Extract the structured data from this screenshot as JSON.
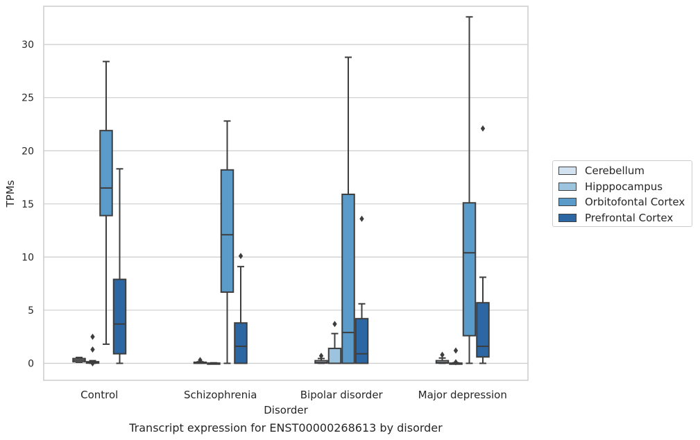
{
  "chart_data": {
    "type": "box",
    "title": "Transcript expression for ENST00000268613 by disorder",
    "xlabel": "Disorder",
    "ylabel": "TPMs",
    "ylim": [
      -1.6,
      33.6
    ],
    "yticks": [
      0,
      5,
      10,
      15,
      20,
      25,
      30
    ],
    "grid": true,
    "legend_position": "right",
    "categories": [
      "Control",
      "Schizophrenia",
      "Bipolar disorder",
      "Major depression"
    ],
    "series": [
      {
        "name": "Cerebellum",
        "color": "#d3e2f0",
        "boxes": [
          {
            "whislo": 0.1,
            "q1": 0.15,
            "med": 0.3,
            "q3": 0.45,
            "whishi": 0.55,
            "fliers": []
          },
          {
            "whislo": 0.0,
            "q1": 0.02,
            "med": 0.05,
            "q3": 0.1,
            "whishi": 0.15,
            "fliers": [
              0.3
            ]
          },
          {
            "whislo": 0.0,
            "q1": 0.02,
            "med": 0.08,
            "q3": 0.25,
            "whishi": 0.45,
            "fliers": [
              0.7
            ]
          },
          {
            "whislo": 0.0,
            "q1": 0.02,
            "med": 0.08,
            "q3": 0.25,
            "whishi": 0.5,
            "fliers": [
              0.8
            ]
          }
        ]
      },
      {
        "name": "Hipppocampus",
        "color": "#9dc4de",
        "boxes": [
          {
            "whislo": 0.0,
            "q1": 0.02,
            "med": 0.05,
            "q3": 0.15,
            "whishi": 0.25,
            "fliers": [
              2.5,
              1.3,
              0.0
            ]
          },
          {
            "whislo": 0.0,
            "q1": 0.0,
            "med": 0.0,
            "q3": 0.02,
            "whishi": 0.05,
            "fliers": []
          },
          {
            "whislo": 0.0,
            "q1": 0.0,
            "med": 0.0,
            "q3": 1.4,
            "whishi": 2.8,
            "fliers": [
              3.7
            ]
          },
          {
            "whislo": 0.0,
            "q1": 0.0,
            "med": 0.0,
            "q3": 0.02,
            "whishi": 0.05,
            "fliers": [
              1.2,
              0.1
            ]
          }
        ]
      },
      {
        "name": "Orbitofontal Cortex",
        "color": "#5b9bc9",
        "boxes": [
          {
            "whislo": 1.8,
            "q1": 13.9,
            "med": 16.5,
            "q3": 21.9,
            "whishi": 28.4,
            "fliers": []
          },
          {
            "whislo": 0.0,
            "q1": 6.7,
            "med": 12.1,
            "q3": 18.2,
            "whishi": 22.8,
            "fliers": []
          },
          {
            "whislo": 0.0,
            "q1": 0.0,
            "med": 2.9,
            "q3": 15.9,
            "whishi": 28.8,
            "fliers": []
          },
          {
            "whislo": 0.0,
            "q1": 2.6,
            "med": 10.4,
            "q3": 15.1,
            "whishi": 32.6,
            "fliers": []
          }
        ]
      },
      {
        "name": "Prefrontal Cortex",
        "color": "#2c67a3",
        "boxes": [
          {
            "whislo": 0.0,
            "q1": 0.9,
            "med": 3.7,
            "q3": 7.9,
            "whishi": 18.3,
            "fliers": []
          },
          {
            "whislo": 0.0,
            "q1": 0.0,
            "med": 1.6,
            "q3": 3.8,
            "whishi": 9.1,
            "fliers": [
              10.1
            ]
          },
          {
            "whislo": 0.0,
            "q1": 0.0,
            "med": 0.9,
            "q3": 4.2,
            "whishi": 5.6,
            "fliers": [
              13.6
            ]
          },
          {
            "whislo": 0.0,
            "q1": 0.6,
            "med": 1.6,
            "q3": 5.7,
            "whishi": 8.1,
            "fliers": [
              22.1
            ]
          }
        ]
      }
    ]
  }
}
